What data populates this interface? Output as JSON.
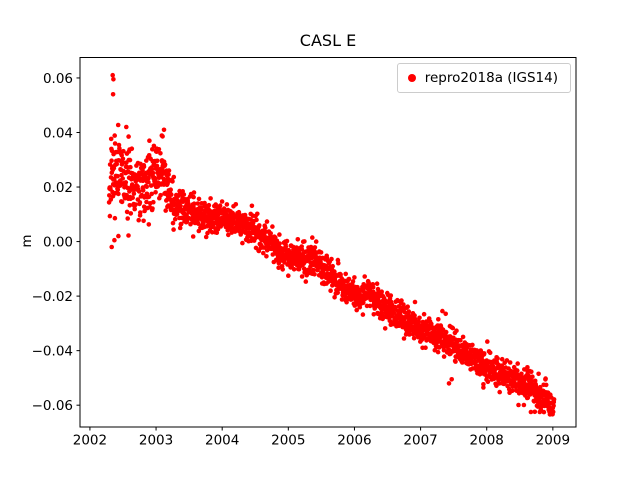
{
  "chart_data": {
    "type": "scatter",
    "title": "CASL E",
    "xlabel": "",
    "ylabel": "m",
    "grid": false,
    "background": "#ffffff",
    "axes_color": "#000000",
    "legend_position": "upper right",
    "xlim": [
      2001.85,
      2009.35
    ],
    "ylim": [
      -0.068,
      0.0675
    ],
    "xticks": [
      2002,
      2003,
      2004,
      2005,
      2006,
      2007,
      2008,
      2009
    ],
    "xtick_labels": [
      "2002",
      "2003",
      "2004",
      "2005",
      "2006",
      "2007",
      "2008",
      "2009"
    ],
    "yticks": [
      -0.06,
      -0.04,
      -0.02,
      0.0,
      0.02,
      0.04,
      0.06
    ],
    "ytick_labels": [
      "−0.06",
      "−0.04",
      "−0.02",
      "0.00",
      "0.02",
      "0.04",
      "0.06"
    ],
    "series": [
      {
        "name": "repro2018a (IGS14)",
        "color": "#ff0000",
        "marker": "circle",
        "marker_radius_px": 2.3,
        "x_start": 2002.29,
        "x_end": 2009.02,
        "points_per_year": 320,
        "seed": 42,
        "trend_anchors": [
          [
            2002.29,
            0.024
          ],
          [
            2002.45,
            0.025
          ],
          [
            2002.6,
            0.022
          ],
          [
            2002.75,
            0.02
          ],
          [
            2002.9,
            0.023
          ],
          [
            2003.0,
            0.027
          ],
          [
            2003.08,
            0.026
          ],
          [
            2003.15,
            0.02
          ],
          [
            2003.25,
            0.0145
          ],
          [
            2003.45,
            0.012
          ],
          [
            2003.7,
            0.0095
          ],
          [
            2003.95,
            0.008
          ],
          [
            2004.15,
            0.0085
          ],
          [
            2004.35,
            0.006
          ],
          [
            2004.55,
            0.0025
          ],
          [
            2004.75,
            -0.001
          ],
          [
            2004.95,
            -0.005
          ],
          [
            2005.1,
            -0.0055
          ],
          [
            2005.25,
            -0.007
          ],
          [
            2005.35,
            -0.006
          ],
          [
            2005.55,
            -0.01
          ],
          [
            2005.75,
            -0.0145
          ],
          [
            2005.95,
            -0.019
          ],
          [
            2006.05,
            -0.021
          ],
          [
            2006.2,
            -0.0195
          ],
          [
            2006.4,
            -0.023
          ],
          [
            2006.6,
            -0.026
          ],
          [
            2006.8,
            -0.0285
          ],
          [
            2007.0,
            -0.032
          ],
          [
            2007.2,
            -0.034
          ],
          [
            2007.4,
            -0.036
          ],
          [
            2007.6,
            -0.04
          ],
          [
            2007.8,
            -0.043
          ],
          [
            2008.0,
            -0.046
          ],
          [
            2008.2,
            -0.048
          ],
          [
            2008.4,
            -0.05
          ],
          [
            2008.6,
            -0.053
          ],
          [
            2008.8,
            -0.056
          ],
          [
            2008.95,
            -0.059
          ],
          [
            2009.02,
            -0.061
          ]
        ],
        "noise_anchors": [
          [
            2002.29,
            0.0075
          ],
          [
            2002.85,
            0.0065
          ],
          [
            2003.05,
            0.005
          ],
          [
            2003.25,
            0.0035
          ],
          [
            2003.8,
            0.0028
          ],
          [
            2009.02,
            0.0027
          ]
        ],
        "outliers": [
          [
            2002.345,
            0.061
          ],
          [
            2002.355,
            0.0595
          ],
          [
            2002.35,
            0.054
          ],
          [
            2002.33,
            -0.002
          ],
          [
            2002.37,
            0.0005
          ],
          [
            2002.43,
            0.002
          ],
          [
            2002.55,
            0.042
          ],
          [
            2002.585,
            0.0385
          ],
          [
            2002.9,
            0.037
          ],
          [
            2003.12,
            0.041
          ],
          [
            2005.0,
            -0.0125
          ],
          [
            2006.55,
            -0.0305
          ],
          [
            2007.33,
            -0.0255
          ],
          [
            2007.38,
            -0.0265
          ],
          [
            2007.43,
            -0.052
          ],
          [
            2007.47,
            -0.0505
          ],
          [
            2007.95,
            -0.0535
          ]
        ]
      }
    ]
  }
}
